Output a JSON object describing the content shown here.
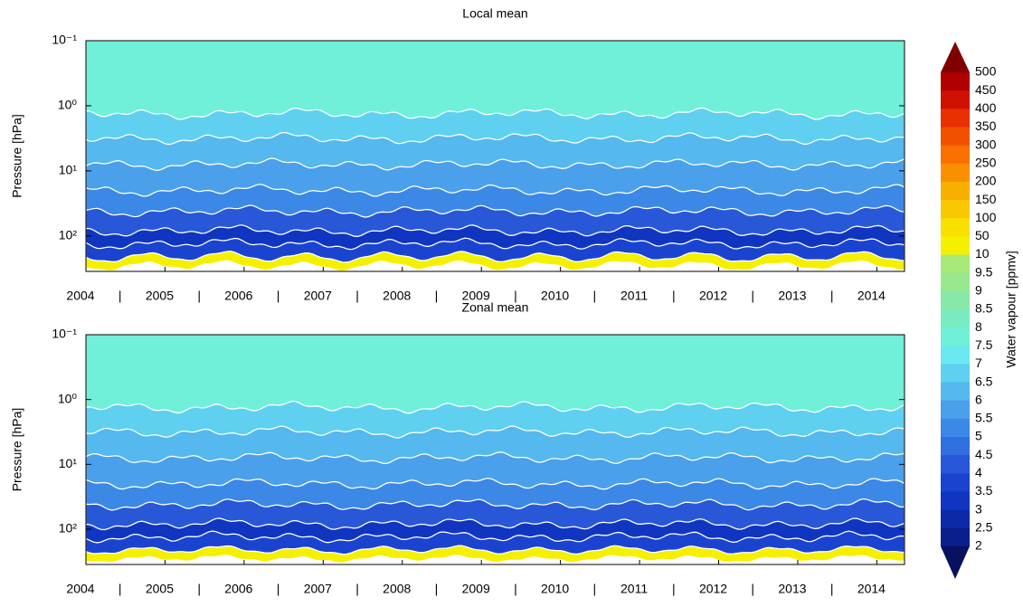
{
  "chart_data": [
    {
      "type": "contour",
      "title": "Local mean",
      "ylabel": "Pressure [hPa]",
      "yscale": "log",
      "y_reversed": true,
      "ylim": [
        0.1,
        350
      ],
      "yticks": [
        {
          "value": 0.1,
          "label": "10⁻¹"
        },
        {
          "value": 1,
          "label": "10⁰"
        },
        {
          "value": 10,
          "label": "10¹"
        },
        {
          "value": 100,
          "label": "10²"
        }
      ],
      "xlim": [
        2004,
        2014.35
      ],
      "xticks": [
        2004,
        2005,
        2006,
        2007,
        2008,
        2009,
        2010,
        2011,
        2012,
        2013,
        2014
      ],
      "xminorticks": [
        {
          "value": 2004.5,
          "label": "|"
        },
        {
          "value": 2005.5,
          "label": "|"
        },
        {
          "value": 2006.5,
          "label": "|"
        },
        {
          "value": 2007.5,
          "label": "|"
        },
        {
          "value": 2008.5,
          "label": "|"
        },
        {
          "value": 2009.5,
          "label": "|"
        },
        {
          "value": 2010.5,
          "label": "|"
        },
        {
          "value": 2011.5,
          "label": "|"
        },
        {
          "value": 2012.5,
          "label": "|"
        },
        {
          "value": 2013.5,
          "label": "|"
        }
      ]
    },
    {
      "type": "contour",
      "title": "Zonal mean",
      "ylabel": "Pressure [hPa]",
      "yscale": "log",
      "y_reversed": true,
      "ylim": [
        0.1,
        350
      ],
      "yticks": [
        {
          "value": 0.1,
          "label": "10⁻¹"
        },
        {
          "value": 1,
          "label": "10⁰"
        },
        {
          "value": 10,
          "label": "10¹"
        },
        {
          "value": 100,
          "label": "10²"
        }
      ],
      "xlim": [
        2004,
        2014.35
      ],
      "xticks": [
        2004,
        2005,
        2006,
        2007,
        2008,
        2009,
        2010,
        2011,
        2012,
        2013,
        2014
      ],
      "xminorticks": [
        {
          "value": 2004.5,
          "label": "|"
        },
        {
          "value": 2005.5,
          "label": "|"
        },
        {
          "value": 2006.5,
          "label": "|"
        },
        {
          "value": 2007.5,
          "label": "|"
        },
        {
          "value": 2008.5,
          "label": "|"
        },
        {
          "value": 2009.5,
          "label": "|"
        },
        {
          "value": 2010.5,
          "label": "|"
        },
        {
          "value": 2011.5,
          "label": "|"
        },
        {
          "value": 2012.5,
          "label": "|"
        },
        {
          "value": 2013.5,
          "label": "|"
        }
      ]
    },
    {
      "type": "colorbar",
      "label": "Water vapour [ppmv]",
      "levels": [
        500,
        450,
        400,
        350,
        300,
        250,
        200,
        150,
        100,
        50,
        10,
        9.5,
        9,
        8.5,
        8,
        7.5,
        7,
        6.5,
        6,
        5.5,
        5,
        4.5,
        4,
        3.5,
        3,
        2.5,
        2
      ],
      "colors": [
        "#b00000",
        "#d01000",
        "#e83000",
        "#f05000",
        "#f87000",
        "#f89000",
        "#f8b000",
        "#f8c800",
        "#f8e000",
        "#f4f000",
        "#a8e878",
        "#98e890",
        "#88e8a8",
        "#78ecc0",
        "#70f0d8",
        "#6ae8f2",
        "#5fd0f0",
        "#55b8ee",
        "#4aa0ea",
        "#3c88e6",
        "#2f6fe0",
        "#2858d8",
        "#1a44d0",
        "#1035c0",
        "#0c2aa8",
        "#0a1e8c"
      ],
      "extend_colors": [
        "#800000",
        "#081060"
      ]
    }
  ]
}
